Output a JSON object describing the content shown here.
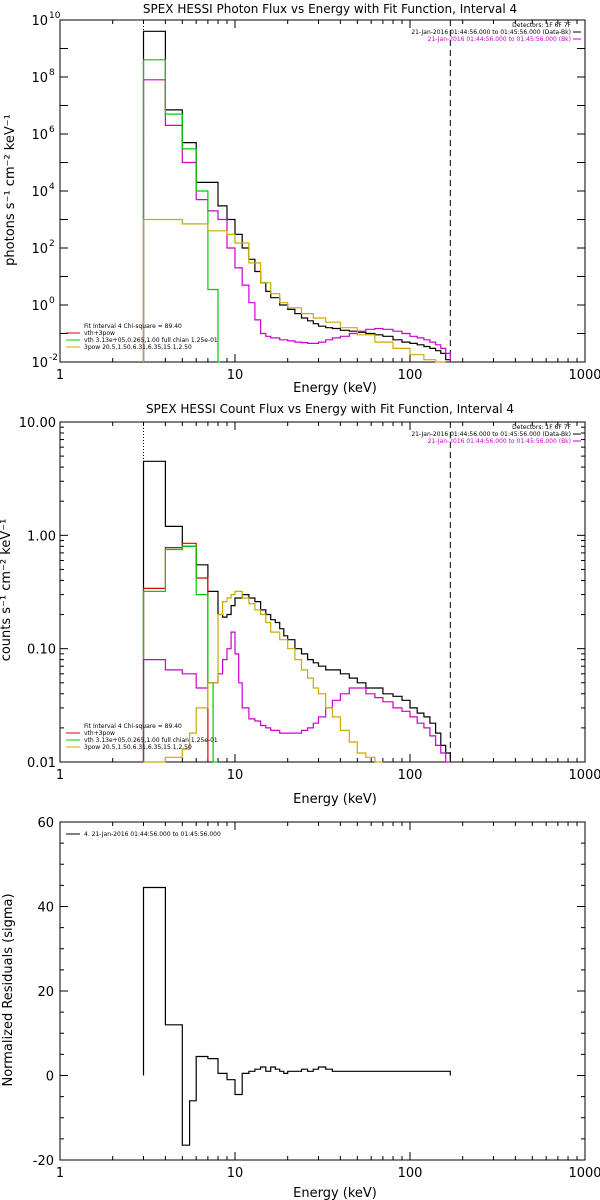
{
  "chart_data": [
    {
      "type": "line",
      "step": true,
      "title": "SPEX HESSI Photon Flux vs Energy with Fit Function, Interval 4",
      "xlabel": "Energy (keV)",
      "ylabel": "photons s⁻¹ cm⁻² keV⁻¹",
      "xscale": "log",
      "yscale": "log",
      "xlim": [
        1,
        1000
      ],
      "ylim": [
        0.01,
        10000000000.0
      ],
      "xticks": [
        "1",
        "10",
        "100",
        "1000"
      ],
      "yticks": [
        {
          "base": "10",
          "exp": "-2"
        },
        {
          "base": "10",
          "exp": "0"
        },
        {
          "base": "10",
          "exp": "2"
        },
        {
          "base": "10",
          "exp": "4"
        },
        {
          "base": "10",
          "exp": "6"
        },
        {
          "base": "10",
          "exp": "8"
        },
        {
          "base": "10",
          "exp": "10"
        }
      ],
      "vlines": [
        {
          "x": 3.0,
          "style": "dotted"
        },
        {
          "x": 170,
          "style": "dashed"
        }
      ],
      "legend_right": [
        {
          "text": "Detectors: 1F 6F 7F",
          "color": "#000000"
        },
        {
          "text": "21-Jan-2016 01:44:56.000 to 01:45:56.000 (Data-Bk)",
          "color": "#000000"
        },
        {
          "text": "21-Jan-2016 01:44:56.000 to 01:45:56.000 (Bk)",
          "color": "#cc00cc"
        }
      ],
      "legend_left": [
        {
          "text": "Fit Interval 4   Chi-square = 89.40",
          "color": "#000000"
        },
        {
          "text": "vth+3pow",
          "color": "#dd0000"
        },
        {
          "text": "vth 3.13e+05,0.265,1.00  full chian 1.25e-01",
          "color": "#00cc00"
        },
        {
          "text": "3pow 20.5,1.50,6.31,6.35,15.1,2.50",
          "color": "#ccaa00"
        }
      ],
      "series": [
        {
          "color": "#000000",
          "edges": [
            3.0,
            3.5,
            4.0,
            4.5,
            5.0,
            5.5,
            6.0,
            7.0,
            8.0,
            9.0,
            10,
            11,
            12,
            13,
            14,
            15,
            16,
            18,
            20,
            22,
            24,
            26,
            28,
            30,
            33,
            36,
            40,
            45,
            50,
            56,
            63,
            70,
            80,
            90,
            100,
            110,
            120,
            130,
            140,
            150,
            160,
            170
          ],
          "values": [
            4000000000.0,
            4000000000.0,
            7000000.0,
            7000000.0,
            500000.0,
            500000.0,
            20000.0,
            20000.0,
            3000,
            1000,
            300,
            100,
            40,
            15,
            6,
            3,
            1.8,
            1.0,
            0.7,
            0.5,
            0.35,
            0.28,
            0.22,
            0.18,
            0.16,
            0.15,
            0.13,
            0.12,
            0.11,
            0.1,
            0.09,
            0.08,
            0.06,
            0.05,
            0.045,
            0.04,
            0.035,
            0.03,
            0.025,
            0.02,
            0.012
          ]
        },
        {
          "color": "#cc00cc",
          "edges": [
            3.0,
            3.5,
            4.0,
            4.5,
            5.0,
            5.5,
            6.0,
            7.0,
            8.0,
            9.0,
            10,
            11,
            12,
            13,
            14,
            15,
            16,
            18,
            20,
            22,
            24,
            26,
            28,
            30,
            33,
            36,
            40,
            45,
            50,
            56,
            63,
            70,
            80,
            90,
            100,
            110,
            120,
            130,
            140,
            150,
            160,
            170
          ],
          "values": [
            80000000.0,
            80000000.0,
            2000000.0,
            2000000.0,
            100000.0,
            100000.0,
            5000,
            2000,
            1000,
            100,
            20,
            5,
            1.2,
            0.3,
            0.1,
            0.08,
            0.07,
            0.06,
            0.055,
            0.05,
            0.048,
            0.045,
            0.045,
            0.05,
            0.06,
            0.07,
            0.08,
            0.1,
            0.12,
            0.14,
            0.15,
            0.14,
            0.12,
            0.1,
            0.08,
            0.07,
            0.06,
            0.05,
            0.04,
            0.03,
            0.02
          ]
        },
        {
          "color": "#00cc00",
          "edges": [
            3.0,
            3.5,
            4.0,
            4.5,
            5.0,
            5.5,
            6.0,
            7.0,
            8.0,
            8.2
          ],
          "values": [
            400000000.0,
            400000000.0,
            5000000.0,
            5000000.0,
            300000.0,
            300000.0,
            10000.0,
            3.5,
            0.01
          ]
        },
        {
          "color": "#ccaa00",
          "edges": [
            3.0,
            5.0,
            7.0,
            9.0,
            10,
            12,
            14,
            16,
            18,
            20,
            24,
            28,
            33,
            40,
            50,
            63,
            80,
            100,
            120,
            140,
            160
          ],
          "values": [
            1000,
            700,
            400,
            300,
            150,
            30,
            6,
            2.5,
            1.2,
            0.8,
            0.5,
            0.35,
            0.25,
            0.16,
            0.09,
            0.05,
            0.03,
            0.018,
            0.012,
            0.008
          ]
        }
      ]
    },
    {
      "type": "line",
      "step": true,
      "title": "SPEX HESSI Count Flux vs Energy with Fit Function, Interval 4",
      "xlabel": "Energy (keV)",
      "ylabel": "counts s⁻¹ cm⁻² keV⁻¹",
      "xscale": "log",
      "yscale": "log",
      "xlim": [
        1,
        1000
      ],
      "ylim": [
        0.01,
        10
      ],
      "xticks": [
        "1",
        "10",
        "100",
        "1000"
      ],
      "yticks": [
        "0.01",
        "0.10",
        "1.00",
        "10.00"
      ],
      "vlines": [
        {
          "x": 3.0,
          "style": "dotted"
        },
        {
          "x": 170,
          "style": "dashed"
        }
      ],
      "legend_right": [
        {
          "text": "Detectors: 1F 6F 7F",
          "color": "#000000"
        },
        {
          "text": "21-Jan-2016 01:44:56.000 to 01:45:56.000 (Data-Bk)",
          "color": "#000000"
        },
        {
          "text": "21-Jan-2016 01:44:56.000 to 01:45:56.000 (Bk)",
          "color": "#cc00cc"
        }
      ],
      "legend_left": [
        {
          "text": "Fit Interval 4   Chi-square = 89.40",
          "color": "#000000"
        },
        {
          "text": "vth+3pow",
          "color": "#dd0000"
        },
        {
          "text": "vth 3.13e+05,0.265,1.00  full chian 1.25e-01",
          "color": "#00cc00"
        },
        {
          "text": "3pow 20.5,1.50,6.31,6.35,15.1,2.50",
          "color": "#ccaa00"
        }
      ],
      "series": [
        {
          "color": "#000000",
          "edges": [
            3.0,
            3.5,
            4.0,
            4.5,
            5.0,
            5.5,
            6.0,
            7.0,
            8.0,
            8.5,
            9.0,
            9.5,
            10,
            11,
            12,
            13,
            14,
            15,
            16,
            17,
            18,
            19,
            20,
            22,
            24,
            26,
            28,
            30,
            33,
            36,
            40,
            45,
            50,
            56,
            63,
            70,
            80,
            90,
            100,
            110,
            120,
            130,
            140,
            150,
            160,
            170
          ],
          "values": [
            4.5,
            4.5,
            1.2,
            1.2,
            0.8,
            0.8,
            0.55,
            0.32,
            0.2,
            0.19,
            0.2,
            0.24,
            0.28,
            0.3,
            0.28,
            0.26,
            0.22,
            0.2,
            0.18,
            0.17,
            0.15,
            0.13,
            0.12,
            0.1,
            0.09,
            0.08,
            0.075,
            0.07,
            0.065,
            0.065,
            0.06,
            0.055,
            0.05,
            0.045,
            0.045,
            0.04,
            0.038,
            0.035,
            0.03,
            0.027,
            0.025,
            0.022,
            0.018,
            0.014,
            0.012
          ]
        },
        {
          "color": "#dd0000",
          "edges": [
            3.0,
            3.5,
            4.0,
            4.5,
            5.0,
            5.5,
            6.0,
            7.0
          ],
          "values": [
            0.34,
            0.34,
            0.78,
            0.78,
            0.85,
            0.85,
            0.42
          ]
        },
        {
          "color": "#00cc00",
          "edges": [
            3.0,
            3.5,
            4.0,
            4.5,
            5.0,
            5.5,
            6.0,
            7.0,
            7.5,
            8.0
          ],
          "values": [
            0.32,
            0.32,
            0.75,
            0.75,
            0.8,
            0.8,
            0.3,
            0.05,
            0.01
          ]
        },
        {
          "color": "#cc00cc",
          "edges": [
            3.0,
            3.5,
            4.0,
            4.5,
            5.0,
            5.5,
            6.0,
            7.0,
            8.0,
            8.5,
            9.0,
            9.5,
            10,
            10.5,
            11,
            12,
            13,
            14,
            15,
            16,
            18,
            20,
            22,
            24,
            26,
            28,
            30,
            33,
            36,
            40,
            45,
            50,
            56,
            63,
            70,
            80,
            90,
            100,
            110,
            120,
            130,
            140,
            150,
            160,
            170
          ],
          "values": [
            0.08,
            0.08,
            0.065,
            0.065,
            0.06,
            0.06,
            0.045,
            0.05,
            0.06,
            0.08,
            0.1,
            0.14,
            0.09,
            0.05,
            0.03,
            0.024,
            0.023,
            0.021,
            0.02,
            0.019,
            0.018,
            0.018,
            0.018,
            0.019,
            0.02,
            0.022,
            0.025,
            0.03,
            0.035,
            0.04,
            0.045,
            0.045,
            0.04,
            0.037,
            0.034,
            0.03,
            0.028,
            0.025,
            0.022,
            0.02,
            0.017,
            0.014,
            0.012,
            0.01
          ]
        },
        {
          "color": "#ccaa00",
          "edges": [
            3.0,
            4.0,
            5.0,
            5.5,
            6.0,
            7.0,
            8.0,
            8.5,
            9.0,
            9.5,
            10,
            11,
            12,
            13,
            14,
            15,
            16,
            18,
            20,
            22,
            24,
            26,
            28,
            30,
            33,
            36,
            40,
            45,
            50,
            56,
            63,
            70
          ],
          "values": [
            0.01,
            0.011,
            0.013,
            0.018,
            0.03,
            0.05,
            0.2,
            0.26,
            0.28,
            0.3,
            0.32,
            0.28,
            0.25,
            0.22,
            0.2,
            0.17,
            0.14,
            0.12,
            0.1,
            0.08,
            0.065,
            0.055,
            0.045,
            0.04,
            0.03,
            0.025,
            0.019,
            0.015,
            0.012,
            0.011,
            0.01
          ]
        }
      ]
    },
    {
      "type": "line",
      "step": true,
      "title": "",
      "xlabel": "Energy (keV)",
      "ylabel": "Normalized Residuals (sigma)",
      "xscale": "log",
      "yscale": "linear",
      "xlim": [
        1,
        1000
      ],
      "ylim": [
        -20,
        60
      ],
      "xticks": [
        "1",
        "10",
        "100",
        "1000"
      ],
      "yticks": [
        "-20",
        "0",
        "20",
        "40",
        "60"
      ],
      "legend_left": [
        {
          "text": "4. 21-Jan-2016 01:44:56.000 to 01:45:56.000",
          "color": "#000000"
        }
      ],
      "series": [
        {
          "color": "#000000",
          "edges": [
            3.0,
            4.0,
            5.0,
            5.5,
            6.0,
            7.0,
            8.0,
            9.0,
            10,
            11,
            12,
            13,
            14,
            15,
            16,
            17,
            18,
            19,
            20,
            22,
            24,
            26,
            28,
            30,
            33,
            36,
            40,
            45,
            50,
            56,
            63,
            70,
            80,
            90,
            100,
            120,
            140,
            170
          ],
          "values": [
            44.5,
            12,
            -16.5,
            -6,
            4.5,
            4,
            0.5,
            -1,
            -4.5,
            0.5,
            1,
            1.5,
            2,
            1,
            2,
            1.5,
            1,
            0.5,
            1,
            1,
            1.5,
            1,
            1.5,
            2,
            1.5,
            1,
            1,
            1,
            1,
            1,
            1,
            1,
            1,
            1,
            1,
            1,
            1
          ]
        }
      ]
    }
  ]
}
